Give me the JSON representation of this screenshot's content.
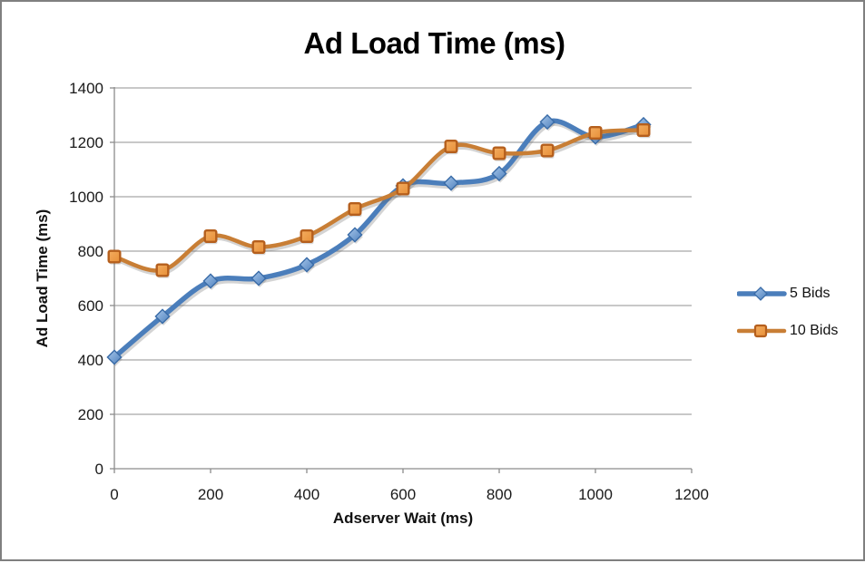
{
  "chart_data": {
    "type": "line",
    "title": "Ad Load Time (ms)",
    "xlabel": "Adserver Wait (ms)",
    "ylabel": "Ad Load Time (ms)",
    "x": [
      0,
      100,
      200,
      300,
      400,
      500,
      600,
      700,
      800,
      900,
      1000,
      1100
    ],
    "series": [
      {
        "name": "5 Bids",
        "values": [
          410,
          560,
          690,
          700,
          750,
          860,
          1040,
          1050,
          1085,
          1275,
          1220,
          1265
        ],
        "line_color": "#4B7EBB",
        "marker": "diamond",
        "marker_fill_light": "#A6C6EA",
        "marker_fill_dark": "#4F81BD",
        "marker_border": "#3A6CA8"
      },
      {
        "name": "10 Bids",
        "values": [
          780,
          730,
          855,
          815,
          855,
          955,
          1030,
          1185,
          1160,
          1170,
          1235,
          1245
        ],
        "line_color": "#C87E35",
        "marker": "square",
        "marker_fill_light": "#F3AC60",
        "marker_fill_dark": "#E89038",
        "marker_border": "#B55F1D"
      }
    ],
    "xlim": [
      0,
      1200
    ],
    "ylim": [
      0,
      1400
    ],
    "x_ticks": [
      0,
      200,
      400,
      600,
      800,
      1000,
      1200
    ],
    "y_ticks": [
      0,
      200,
      400,
      600,
      800,
      1000,
      1200,
      1400
    ],
    "grid": true,
    "smooth": true,
    "gridline_color": "#A6A6A6",
    "axis_color": "#8C8C8C",
    "tick_label_color": "#1a1a1a",
    "legend_position": "right-middle"
  }
}
